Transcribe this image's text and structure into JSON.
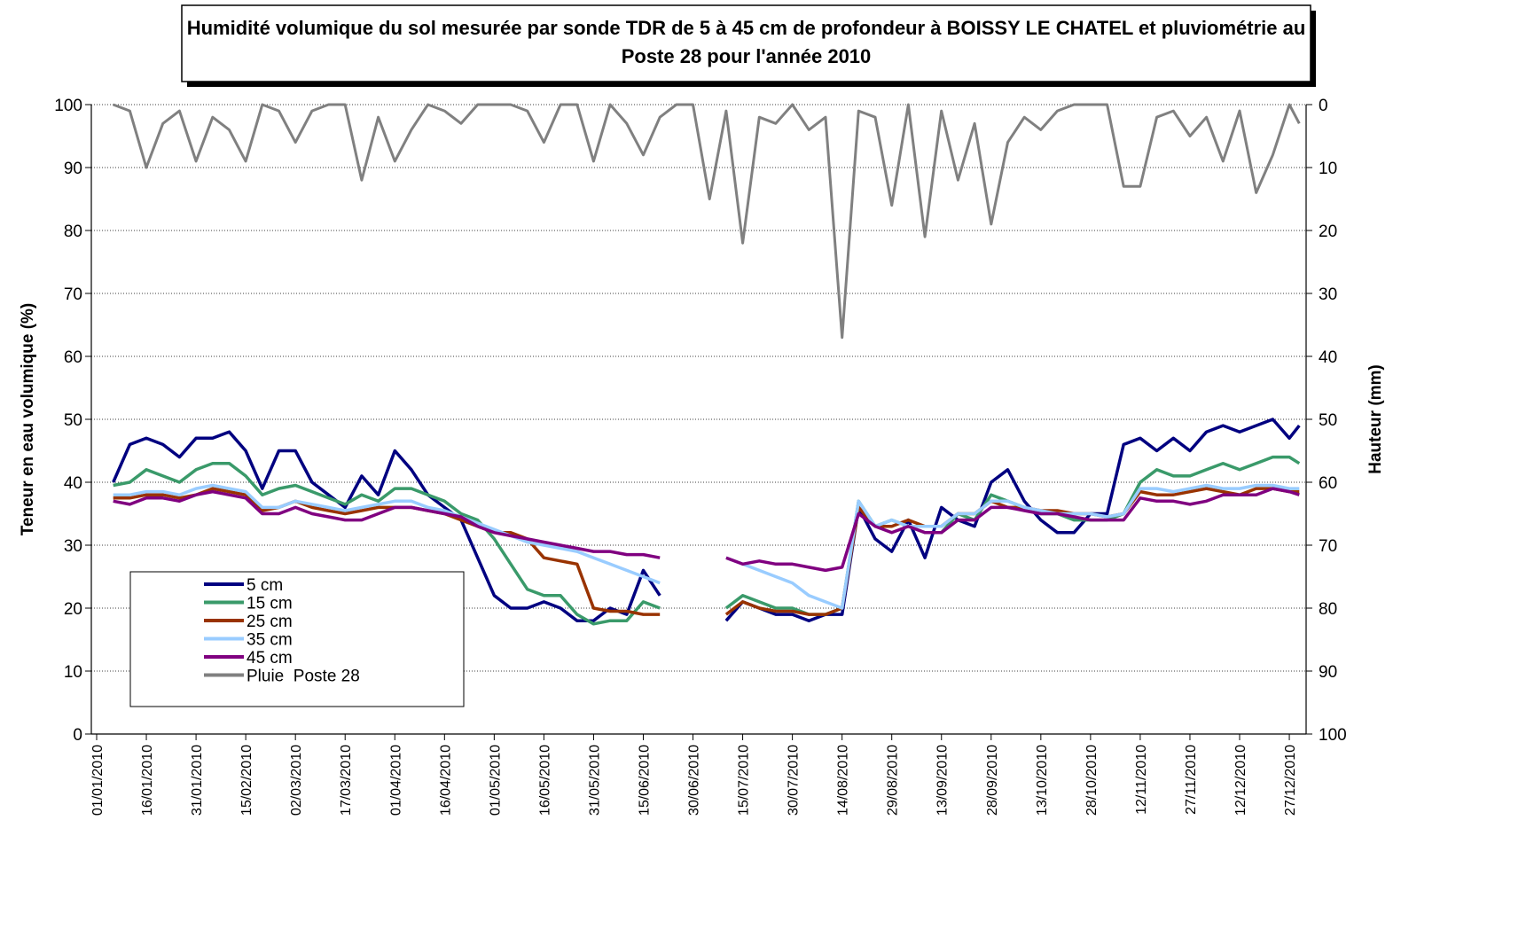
{
  "chart_data": {
    "type": "line",
    "title": "Humidité volumique du sol mesurée par sonde TDR de 5 à 45 cm de profondeur à BOISSY LE CHATEL et pluviométrie au Poste 28 pour l'année 2010",
    "y_label": "Teneur en eau volumique (%)",
    "y2_label": "Hauteur (mm)",
    "x": [
      "06/01/2010",
      "11/01/2010",
      "16/01/2010",
      "21/01/2010",
      "26/01/2010",
      "31/01/2010",
      "05/02/2010",
      "10/02/2010",
      "15/02/2010",
      "20/02/2010",
      "25/02/2010",
      "02/03/2010",
      "07/03/2010",
      "12/03/2010",
      "17/03/2010",
      "22/03/2010",
      "27/03/2010",
      "01/04/2010",
      "06/04/2010",
      "11/04/2010",
      "16/04/2010",
      "21/04/2010",
      "26/04/2010",
      "01/05/2010",
      "06/05/2010",
      "11/05/2010",
      "16/05/2010",
      "21/05/2010",
      "26/05/2010",
      "31/05/2010",
      "05/06/2010",
      "10/06/2010",
      "15/06/2010",
      "20/06/2010",
      "25/06/2010",
      "30/06/2010",
      "05/07/2010",
      "10/07/2010",
      "15/07/2010",
      "20/07/2010",
      "25/07/2010",
      "30/07/2010",
      "04/08/2010",
      "09/08/2010",
      "14/08/2010",
      "19/08/2010",
      "24/08/2010",
      "29/08/2010",
      "03/09/2010",
      "08/09/2010",
      "13/09/2010",
      "18/09/2010",
      "23/09/2010",
      "28/09/2010",
      "03/10/2010",
      "08/10/2010",
      "13/10/2010",
      "18/10/2010",
      "23/10/2010",
      "28/10/2010",
      "02/11/2010",
      "07/11/2010",
      "12/11/2010",
      "17/11/2010",
      "22/11/2010",
      "27/11/2010",
      "02/12/2010",
      "07/12/2010",
      "12/12/2010",
      "17/12/2010",
      "22/12/2010",
      "27/12/2010",
      "30/12/2010"
    ],
    "xlim": [
      "01/01/2010",
      "31/12/2010"
    ],
    "xticks": [
      "01/01/2010",
      "16/01/2010",
      "31/01/2010",
      "15/02/2010",
      "02/03/2010",
      "17/03/2010",
      "01/04/2010",
      "16/04/2010",
      "01/05/2010",
      "16/05/2010",
      "31/05/2010",
      "15/06/2010",
      "30/06/2010",
      "15/07/2010",
      "30/07/2010",
      "14/08/2010",
      "29/08/2010",
      "13/09/2010",
      "28/09/2010",
      "13/10/2010",
      "28/10/2010",
      "12/11/2010",
      "27/11/2010",
      "12/12/2010",
      "27/12/2010"
    ],
    "ylim": [
      0,
      100
    ],
    "yticks": [
      0,
      10,
      20,
      30,
      40,
      50,
      60,
      70,
      80,
      90,
      100
    ],
    "y2lim": [
      0,
      100
    ],
    "y2ticks": [
      0,
      10,
      20,
      30,
      40,
      50,
      60,
      70,
      80,
      90,
      100
    ],
    "y2_inverted": true,
    "grid": true,
    "legend": "lower left",
    "series": [
      {
        "name": "5 cm",
        "color": "#000080",
        "values": [
          40,
          46,
          47,
          46,
          44,
          47,
          47,
          48,
          45,
          39,
          45,
          45,
          40,
          38,
          36,
          41,
          38,
          45,
          42,
          38,
          36,
          34,
          28,
          22,
          20,
          20,
          21,
          20,
          18,
          18,
          20,
          19,
          26,
          22,
          null,
          null,
          null,
          18,
          21,
          20,
          19,
          19,
          18,
          19,
          19,
          36,
          31,
          29,
          34,
          28,
          36,
          34,
          33,
          40,
          42,
          37,
          34,
          32,
          32,
          35,
          35,
          46,
          47,
          45,
          47,
          45,
          48,
          49,
          48,
          49,
          50,
          47,
          49
        ]
      },
      {
        "name": "15 cm",
        "color": "#3a9a6a",
        "values": [
          39.5,
          40,
          42,
          41,
          40,
          42,
          43,
          43,
          41,
          38,
          39,
          39.5,
          38.5,
          37.5,
          36.5,
          38,
          37,
          39,
          39,
          38,
          37,
          35,
          34,
          31,
          27,
          23,
          22,
          22,
          19,
          17.5,
          18,
          18,
          21,
          20,
          null,
          null,
          null,
          20,
          22,
          21,
          20,
          20,
          19,
          19,
          20,
          37,
          33,
          34,
          33,
          32,
          32,
          35,
          34,
          38,
          37,
          36,
          35,
          35,
          34,
          34,
          34,
          35,
          40,
          42,
          41,
          41,
          42,
          43,
          42,
          43,
          44,
          44,
          43
        ]
      },
      {
        "name": "25 cm",
        "color": "#993300",
        "values": [
          37.5,
          37.5,
          38,
          38,
          37.5,
          38,
          39,
          38.5,
          38,
          35.5,
          36,
          37,
          36,
          35.5,
          35,
          35.5,
          36,
          36,
          36,
          35.5,
          35,
          34,
          33,
          32,
          32,
          31,
          28,
          27.5,
          27,
          20,
          19.5,
          19.5,
          19,
          19,
          null,
          null,
          null,
          19,
          21,
          20,
          19.5,
          19.5,
          19,
          19,
          20,
          36,
          33,
          33,
          34,
          33,
          33,
          35,
          35,
          37,
          36,
          36,
          35.5,
          35.5,
          35,
          35,
          34.5,
          35,
          38.5,
          38,
          38,
          38.5,
          39,
          38.5,
          38,
          39,
          39,
          38.5,
          38.5
        ]
      },
      {
        "name": "35 cm",
        "color": "#99ccff",
        "values": [
          38,
          38,
          38.5,
          38.5,
          38,
          39,
          39.5,
          39,
          38.5,
          36,
          36,
          37,
          36.5,
          36,
          35.5,
          36,
          36.5,
          37,
          37,
          36,
          35.5,
          34.5,
          33.5,
          32.5,
          31.5,
          30.5,
          30,
          29.5,
          29,
          28,
          27,
          26,
          25,
          24,
          null,
          null,
          null,
          28,
          27,
          26,
          25,
          24,
          22,
          21,
          20,
          37,
          33,
          34,
          33,
          33,
          33,
          35,
          35,
          37,
          37,
          36,
          35.5,
          35,
          35,
          35,
          34.5,
          35,
          39,
          39,
          38.5,
          39,
          39.5,
          39,
          39,
          39.5,
          39.5,
          39,
          39
        ]
      },
      {
        "name": "45 cm",
        "color": "#800080",
        "values": [
          37,
          36.5,
          37.5,
          37.5,
          37,
          38,
          38.5,
          38,
          37.5,
          35,
          35,
          36,
          35,
          34.5,
          34,
          34,
          35,
          36,
          36,
          35.5,
          35,
          34.5,
          33,
          32,
          31.5,
          31,
          30.5,
          30,
          29.5,
          29,
          29,
          28.5,
          28.5,
          28,
          null,
          null,
          null,
          28,
          27,
          27.5,
          27,
          27,
          26.5,
          26,
          26.5,
          35,
          33,
          32,
          33,
          32,
          32,
          34,
          34,
          36,
          36,
          35.5,
          35,
          35,
          34.5,
          34,
          34,
          34,
          37.5,
          37,
          37,
          36.5,
          37,
          38,
          38,
          38,
          39,
          38.5,
          38
        ]
      },
      {
        "name": "Pluie  Poste 28",
        "color": "#808080",
        "axis": "y2",
        "values": [
          0,
          1,
          10,
          3,
          1,
          9,
          2,
          4,
          9,
          0,
          1,
          6,
          1,
          0,
          0,
          12,
          2,
          9,
          4,
          0,
          1,
          3,
          0,
          0,
          0,
          1,
          6,
          0,
          0,
          9,
          0,
          3,
          8,
          2,
          0,
          0,
          15,
          1,
          22,
          2,
          3,
          0,
          4,
          2,
          37,
          1,
          2,
          16,
          0,
          21,
          1,
          12,
          3,
          19,
          6,
          2,
          4,
          1,
          0,
          0,
          0,
          13,
          13,
          2,
          1,
          5,
          2,
          9,
          1,
          14,
          8,
          0,
          3
        ]
      }
    ]
  }
}
